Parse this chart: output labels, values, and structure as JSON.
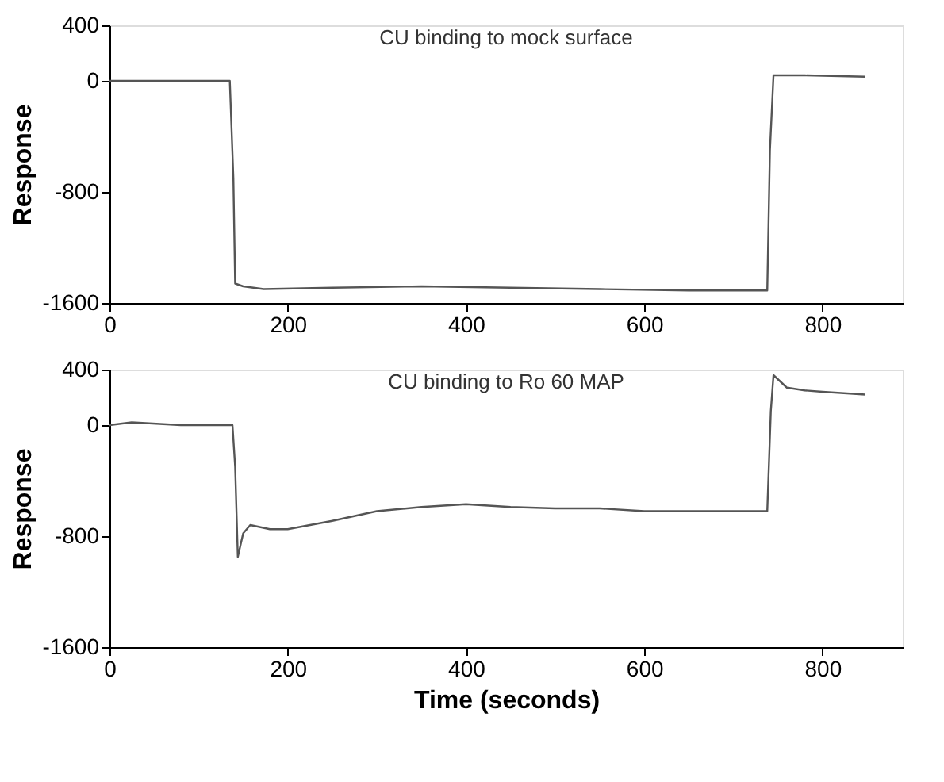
{
  "chart_data": [
    {
      "type": "line",
      "title": "CU binding to mock surface",
      "ylabel": "Response",
      "xlim": [
        0,
        890
      ],
      "ylim": [
        -1600,
        400
      ],
      "xticks": [
        0,
        200,
        400,
        600,
        800
      ],
      "yticks": [
        400,
        0,
        -800,
        -1600
      ],
      "grid": false,
      "series": [
        {
          "color": "#555555",
          "x": [
            0,
            60,
            135,
            139,
            141,
            150,
            173,
            250,
            350,
            450,
            550,
            650,
            738,
            741,
            745,
            780,
            848
          ],
          "values": [
            0,
            0,
            0,
            -700,
            -1460,
            -1480,
            -1500,
            -1490,
            -1480,
            -1490,
            -1500,
            -1510,
            -1510,
            -500,
            40,
            40,
            30
          ]
        }
      ]
    },
    {
      "type": "line",
      "title": "CU binding to Ro 60 MAP",
      "xlabel": "Time (seconds)",
      "ylabel": "Response",
      "xlim": [
        0,
        890
      ],
      "ylim": [
        -1600,
        400
      ],
      "xticks": [
        0,
        200,
        400,
        600,
        800
      ],
      "yticks": [
        400,
        0,
        -800,
        -1600
      ],
      "grid": false,
      "series": [
        {
          "color": "#555555",
          "x": [
            0,
            25,
            80,
            138,
            141,
            144,
            150,
            158,
            180,
            200,
            250,
            300,
            350,
            400,
            450,
            500,
            550,
            600,
            700,
            738,
            742,
            745,
            760,
            780,
            800,
            848
          ],
          "values": [
            0,
            20,
            0,
            0,
            -300,
            -950,
            -780,
            -720,
            -750,
            -750,
            -690,
            -620,
            -590,
            -570,
            -590,
            -600,
            -600,
            -620,
            -620,
            -620,
            100,
            360,
            270,
            250,
            240,
            220
          ]
        }
      ]
    }
  ]
}
